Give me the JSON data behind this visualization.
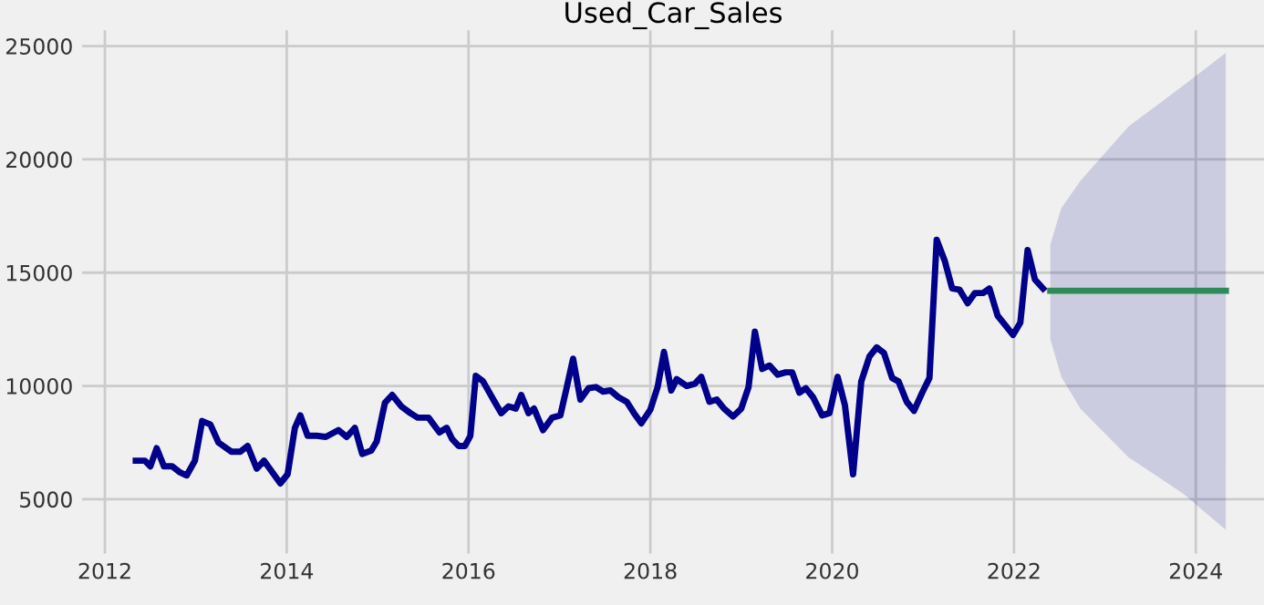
{
  "chart_data": {
    "type": "line",
    "title": "Used_Car_Sales",
    "series": [
      {
        "color": "#00008b",
        "x": [
          2012.34,
          2012.44,
          2012.5,
          2012.57,
          2012.65,
          2012.74,
          2012.82,
          2012.9,
          2012.99,
          2013.07,
          2013.16,
          2013.25,
          2013.39,
          2013.49,
          2013.57,
          2013.67,
          2013.75,
          2013.93,
          2014.01,
          2014.09,
          2014.15,
          2014.23,
          2014.33,
          2014.43,
          2014.57,
          2014.66,
          2014.75,
          2014.83,
          2014.93,
          2014.99,
          2015.08,
          2015.16,
          2015.26,
          2015.36,
          2015.44,
          2015.56,
          2015.68,
          2015.76,
          2015.82,
          2015.89,
          2015.96,
          2016.02,
          2016.08,
          2016.16,
          2016.28,
          2016.36,
          2016.44,
          2016.52,
          2016.58,
          2016.66,
          2016.72,
          2016.82,
          2016.92,
          2017.01,
          2017.07,
          2017.15,
          2017.23,
          2017.32,
          2017.4,
          2017.48,
          2017.56,
          2017.65,
          2017.74,
          2017.82,
          2017.9,
          2018.0,
          2018.08,
          2018.15,
          2018.23,
          2018.29,
          2018.4,
          2018.49,
          2018.56,
          2018.65,
          2018.73,
          2018.81,
          2018.91,
          2019.0,
          2019.08,
          2019.15,
          2019.23,
          2019.31,
          2019.4,
          2019.49,
          2019.56,
          2019.64,
          2019.71,
          2019.79,
          2019.89,
          2019.97,
          2020.06,
          2020.14,
          2020.23,
          2020.32,
          2020.41,
          2020.49,
          2020.57,
          2020.66,
          2020.73,
          2020.82,
          2020.9,
          2020.99,
          2021.07,
          2021.15,
          2021.24,
          2021.32,
          2021.4,
          2021.49,
          2021.57,
          2021.66,
          2021.73,
          2021.82,
          2021.9,
          2021.99,
          2022.07,
          2022.15,
          2022.23,
          2022.32
        ],
        "values": [
          6700,
          6700,
          6450,
          7250,
          6450,
          6450,
          6200,
          6050,
          6700,
          8450,
          8300,
          7500,
          7100,
          7100,
          7350,
          6350,
          6700,
          5700,
          6100,
          8150,
          8700,
          7800,
          7800,
          7750,
          8050,
          7750,
          8150,
          7000,
          7150,
          7550,
          9250,
          9600,
          9100,
          8800,
          8600,
          8600,
          7950,
          8150,
          7650,
          7350,
          7350,
          7800,
          10450,
          10200,
          9350,
          8800,
          9100,
          9000,
          9600,
          8800,
          9000,
          8050,
          8600,
          8700,
          9750,
          11200,
          9400,
          9900,
          9950,
          9750,
          9800,
          9500,
          9300,
          8800,
          8350,
          8950,
          9950,
          11500,
          9800,
          10300,
          10000,
          10100,
          10400,
          9300,
          9400,
          9000,
          8650,
          9000,
          9950,
          12400,
          10750,
          10900,
          10500,
          10600,
          10600,
          9700,
          9900,
          9500,
          8700,
          8800,
          10400,
          9150,
          6100,
          10200,
          11300,
          11700,
          11450,
          10350,
          10200,
          9300,
          8900,
          9700,
          10350,
          16450,
          15500,
          14300,
          14250,
          13650,
          14100,
          14100,
          14300,
          13100,
          12700,
          12250,
          12800,
          16000,
          14700,
          14300
        ]
      },
      {
        "color": "#2e8b57",
        "x": [
          2022.4,
          2022.52,
          2022.73,
          2023.26,
          2023.86,
          2024.33
        ],
        "values": [
          14200,
          14200,
          14200,
          14200,
          14200,
          14200
        ],
        "lower": [
          12050,
          10400,
          9000,
          6850,
          5250,
          3650
        ],
        "upper": [
          16250,
          17850,
          19050,
          21450,
          23250,
          24700
        ]
      }
    ],
    "xlim": [
      2011.75,
      2024.75
    ],
    "xticks": [
      2012,
      2014,
      2016,
      2018,
      2020,
      2022,
      2024
    ],
    "ylim": [
      2600,
      25700
    ],
    "yticks": [
      5000,
      10000,
      15000,
      20000,
      25000
    ],
    "grid": true
  }
}
